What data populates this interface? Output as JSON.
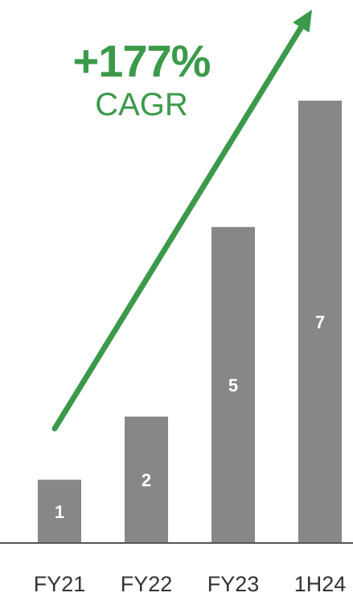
{
  "headline": {
    "growth": "+177%",
    "metric": "CAGR",
    "color": "#3b9a4a"
  },
  "chart_data": {
    "type": "bar",
    "categories": [
      "FY21",
      "FY22",
      "FY23",
      "1H24"
    ],
    "values": [
      1,
      2,
      5,
      7
    ],
    "data_labels": [
      "1",
      "2",
      "5",
      "7"
    ],
    "title": "",
    "xlabel": "",
    "ylabel": "",
    "ylim": [
      0,
      7.7
    ],
    "grid": false,
    "legend": "none",
    "bar_color": "#878787",
    "label_color": "#ffffff",
    "axis_color": "#555555",
    "tick_color": "#333333",
    "trend_arrow": true
  }
}
